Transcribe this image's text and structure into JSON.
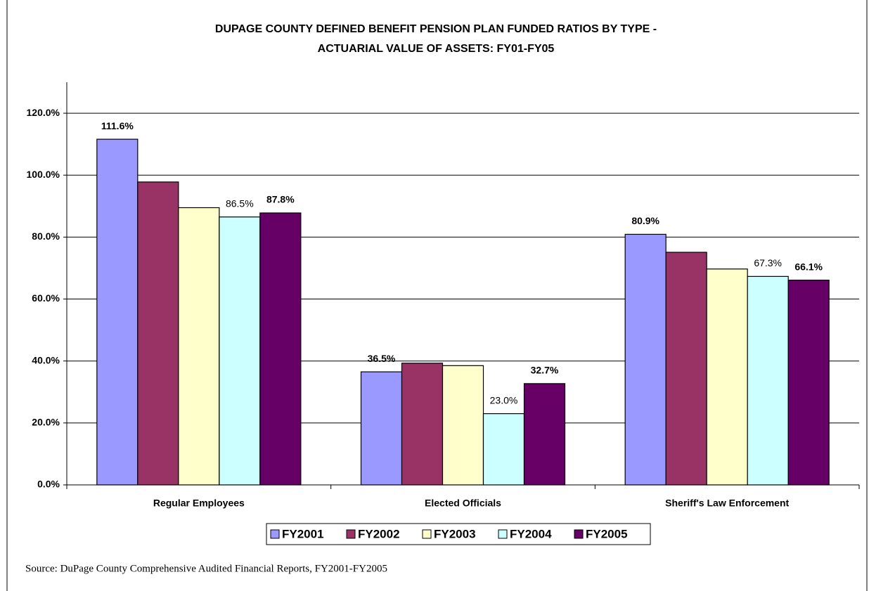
{
  "chart_data": {
    "type": "bar",
    "title": [
      "DUPAGE COUNTY DEFINED BENEFIT PENSION PLAN FUNDED RATIOS BY TYPE -",
      "ACTUARIAL VALUE OF ASSETS: FY01-FY05"
    ],
    "categories": [
      "Regular Employees",
      "Elected Officials",
      "Sheriff's Law Enforcement"
    ],
    "series": [
      {
        "name": "FY2001",
        "color": "#9999ff",
        "values": [
          111.6,
          36.5,
          80.9
        ],
        "value_labels": [
          "111.6%",
          "36.5%",
          "80.9%"
        ]
      },
      {
        "name": "FY2002",
        "color": "#993366",
        "values": [
          97.8,
          39.3,
          75.1
        ]
      },
      {
        "name": "FY2003",
        "color": "#ffffcc",
        "values": [
          89.5,
          38.5,
          69.7
        ]
      },
      {
        "name": "FY2004",
        "color": "#ccffff",
        "values": [
          86.5,
          23.0,
          67.3
        ],
        "value_labels": [
          "86.5%",
          "23.0%",
          "67.3%"
        ]
      },
      {
        "name": "FY2005",
        "color": "#660066",
        "values": [
          87.8,
          32.7,
          66.1
        ],
        "value_labels": [
          "87.8%",
          "32.7%",
          "66.1%"
        ]
      }
    ],
    "ylim": [
      0,
      130
    ],
    "yticks": [
      {
        "value": 0,
        "label": "0.0%"
      },
      {
        "value": 20,
        "label": "20.0%"
      },
      {
        "value": 40,
        "label": "40.0%"
      },
      {
        "value": 60,
        "label": "60.0%"
      },
      {
        "value": 80,
        "label": "80.0%"
      },
      {
        "value": 100,
        "label": "100.0%"
      },
      {
        "value": 120,
        "label": "120.0%"
      }
    ],
    "grid": true,
    "legend": "bottom",
    "source": "Source:  DuPage County Comprehensive Audited Financial Reports, FY2001-FY2005"
  }
}
